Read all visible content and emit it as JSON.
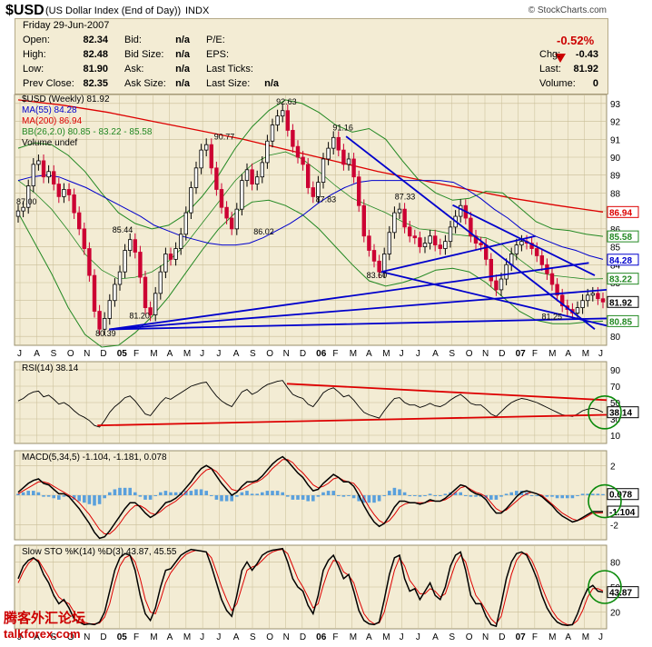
{
  "header": {
    "symbol": "$USD",
    "name": "(US Dollar Index (End of Day))",
    "exchange": "INDX",
    "copyright": "© StockCharts.com"
  },
  "quote": {
    "date": "Friday  29-Jun-2007",
    "open_label": "Open:",
    "open": "82.34",
    "high_label": "High:",
    "high": "82.48",
    "low_label": "Low:",
    "low": "81.90",
    "prev_close_label": "Prev Close:",
    "prev_close": "82.35",
    "bid_label": "Bid:",
    "bid": "n/a",
    "bid_size_label": "Bid Size:",
    "bid_size": "n/a",
    "ask_label": "Ask:",
    "ask": "n/a",
    "ask_size_label": "Ask Size:",
    "ask_size": "n/a",
    "pe_label": "P/E:",
    "eps_label": "EPS:",
    "last_ticks_label": "Last Ticks:",
    "last_size_label": "Last Size:",
    "last_size": "n/a",
    "change_pct": "-0.52%",
    "chg_label": "Chg:",
    "chg": "-0.43",
    "last_label": "Last:",
    "last": "81.92",
    "volume_label": "Volume:",
    "volume": "0",
    "down_color": "#cc0000"
  },
  "chart_data": [
    {
      "type": "candlestick",
      "legend": [
        {
          "text": "$USD (Weekly) 81.92",
          "color": "#000000"
        },
        {
          "text": "MA(55) 84.28",
          "color": "#0000cc"
        },
        {
          "text": "MA(200) 86.94",
          "color": "#dd0000"
        },
        {
          "text": "BB(26,2.0) 80.85 - 83.22 - 85.58",
          "color": "#228822"
        },
        {
          "text": "Volume undef",
          "color": "#000000"
        }
      ],
      "y_ticks": [
        80,
        81,
        82,
        83,
        84,
        85,
        86,
        87,
        88,
        89,
        90,
        91,
        92,
        93
      ],
      "ylim": [
        79.5,
        93.5
      ],
      "x_labels": [
        "J",
        "A",
        "S",
        "O",
        "N",
        "D",
        "05",
        "F",
        "M",
        "A",
        "M",
        "J",
        "J",
        "A",
        "S",
        "O",
        "N",
        "D",
        "06",
        "F",
        "M",
        "A",
        "M",
        "J",
        "J",
        "A",
        "S",
        "O",
        "N",
        "D",
        "07",
        "F",
        "M",
        "A",
        "M",
        "J"
      ],
      "annotations": [
        "87.00",
        "85.44",
        "80.39",
        "81.20",
        "90.77",
        "86.02",
        "92.63",
        "87.83",
        "91.16",
        "87.33",
        "83.60",
        "81.25"
      ],
      "price_tags": [
        {
          "value": 86.94,
          "label": "86.94",
          "color": "#dd0000"
        },
        {
          "value": 85.58,
          "label": "85.58",
          "color": "#228822"
        },
        {
          "value": 84.28,
          "label": "84.28",
          "color": "#0000cc"
        },
        {
          "value": 83.22,
          "label": "83.22",
          "color": "#228822"
        },
        {
          "value": 81.92,
          "label": "81.92",
          "color": "#000000"
        },
        {
          "value": 80.85,
          "label": "80.85",
          "color": "#228822"
        }
      ],
      "close": [
        87.0,
        87.2,
        88.4,
        89.6,
        89.8,
        88.9,
        89.2,
        88.5,
        87.8,
        88.2,
        87.9,
        86.9,
        86.0,
        84.9,
        83.4,
        81.4,
        80.4,
        81.0,
        82.0,
        82.9,
        83.6,
        84.8,
        85.4,
        84.7,
        83.3,
        81.6,
        81.2,
        82.4,
        83.6,
        84.6,
        84.3,
        84.9,
        85.7,
        86.9,
        88.3,
        89.4,
        90.4,
        90.7,
        89.4,
        88.2,
        87.2,
        86.6,
        86.0,
        87.1,
        88.7,
        89.3,
        88.5,
        88.9,
        89.7,
        90.9,
        91.8,
        92.3,
        92.6,
        91.5,
        90.6,
        90.0,
        89.6,
        88.3,
        87.8,
        88.6,
        89.9,
        90.5,
        91.1,
        90.4,
        89.6,
        89.9,
        88.9,
        87.3,
        85.6,
        84.8,
        84.2,
        83.6,
        84.6,
        85.8,
        86.9,
        87.1,
        86.1,
        85.6,
        85.5,
        85.0,
        85.2,
        85.6,
        85.1,
        84.9,
        85.3,
        86.1,
        86.7,
        87.3,
        86.6,
        85.6,
        85.2,
        85.1,
        84.3,
        83.1,
        82.6,
        83.2,
        84.0,
        84.6,
        85.1,
        85.3,
        85.2,
        84.9,
        84.5,
        84.0,
        83.5,
        82.9,
        82.3,
        81.7,
        81.5,
        81.3,
        81.6,
        82.0,
        82.3,
        82.4,
        82.1,
        81.92
      ],
      "ma55": [
        88.7,
        88.9,
        89.0,
        88.9,
        88.6,
        88.3,
        87.9,
        87.5,
        87.1,
        86.7,
        86.2,
        85.9,
        85.6,
        85.4,
        85.2,
        85.1,
        85.1,
        85.2,
        85.5,
        85.9,
        86.3,
        86.8,
        87.4,
        87.9,
        88.3,
        88.6,
        88.7,
        88.7,
        88.7,
        88.7,
        88.7,
        88.7,
        88.6,
        88.2,
        87.7,
        87.1,
        86.6,
        86.0,
        85.6,
        85.3,
        85.0,
        84.8,
        84.5,
        84.3
      ],
      "ma200": [
        93.2,
        92.9,
        92.5,
        92.0,
        91.5,
        91.0,
        90.4,
        89.8,
        89.2,
        88.7,
        88.2,
        87.7,
        87.3,
        86.94
      ],
      "bb_upper": [
        90.5,
        90.8,
        90.7,
        90.1,
        89.2,
        88.0,
        86.9,
        86.3,
        86.0,
        86.2,
        86.8,
        87.8,
        89.0,
        90.5,
        91.7,
        92.6,
        93.2,
        93.0,
        92.5,
        91.8,
        91.4,
        91.6,
        91.0,
        89.8,
        88.7,
        88.0,
        87.6,
        87.7,
        88.1,
        88.0,
        87.2,
        86.4,
        86.0,
        85.9,
        85.7,
        85.58
      ],
      "bb_lower": [
        86.9,
        85.2,
        83.5,
        81.6,
        80.1,
        79.4,
        79.5,
        80.2,
        81.1,
        82.2,
        83.5,
        84.8,
        86.0,
        86.9,
        87.5,
        87.6,
        87.3,
        86.8,
        86.0,
        85.0,
        84.0,
        83.1,
        82.8,
        83.0,
        83.3,
        83.7,
        83.8,
        83.6,
        83.0,
        82.2,
        81.4,
        80.9,
        80.7,
        80.7,
        80.8,
        80.85
      ],
      "bb_mid": [
        88.7,
        88.0,
        87.1,
        85.9,
        84.6,
        83.7,
        83.2,
        83.3,
        83.6,
        84.2,
        85.1,
        86.3,
        87.5,
        88.7,
        89.6,
        90.1,
        90.3,
        89.9,
        89.2,
        88.4,
        87.7,
        87.3,
        86.9,
        86.4,
        86.0,
        85.9,
        85.7,
        85.6,
        85.5,
        85.1,
        84.3,
        83.6,
        83.4,
        83.3,
        83.2,
        83.22
      ],
      "trendlines": [
        {
          "x1": 0.0,
          "y1": 80.39,
          "x2": 1.0,
          "y2": 82.6
        },
        {
          "x1": 0.0,
          "y1": 80.39,
          "x2": 1.0,
          "y2": 81.0
        },
        {
          "x1": 0.0,
          "y1": 80.39,
          "x2": 1.0,
          "y2": 84.1
        },
        {
          "x1": 0.0,
          "y1": 91.16,
          "x2": 1.0,
          "y2": 80.4
        },
        {
          "x1": 0.0,
          "y1": 83.6,
          "x2": 1.0,
          "y2": 85.6
        },
        {
          "x1": 0.0,
          "y1": 83.6,
          "x2": 1.0,
          "y2": 80.6
        },
        {
          "x1": 0.0,
          "y1": 87.33,
          "x2": 1.0,
          "y2": 83.4
        }
      ]
    },
    {
      "type": "line",
      "title": "RSI(14) 38.14",
      "ylim": [
        0,
        100
      ],
      "y_ticks": [
        10,
        30,
        50,
        70,
        90
      ],
      "series": [
        {
          "values": [
            52,
            55,
            60,
            63,
            64,
            57,
            59,
            54,
            48,
            50,
            46,
            40,
            35,
            32,
            28,
            22,
            20,
            28,
            38,
            45,
            50,
            56,
            58,
            52,
            44,
            36,
            34,
            42,
            50,
            56,
            54,
            58,
            62,
            66,
            70,
            72,
            74,
            75,
            66,
            58,
            52,
            48,
            45,
            54,
            63,
            66,
            60,
            63,
            68,
            72,
            74,
            76,
            77,
            68,
            60,
            57,
            55,
            48,
            45,
            53,
            62,
            66,
            68,
            63,
            57,
            59,
            53,
            45,
            38,
            35,
            33,
            31,
            40,
            48,
            55,
            56,
            50,
            47,
            47,
            44,
            46,
            49,
            46,
            45,
            48,
            53,
            57,
            60,
            55,
            49,
            47,
            47,
            42,
            36,
            33,
            39,
            45,
            50,
            53,
            55,
            54,
            52,
            50,
            47,
            44,
            41,
            38,
            35,
            34,
            33,
            36,
            40,
            42,
            43,
            41,
            38.14
          ]
        }
      ],
      "price_tags": [
        {
          "value": 38.14,
          "label": "38.14"
        }
      ]
    },
    {
      "type": "line",
      "title": "MACD(5,34,5) -1.104, -1.181, 0.078",
      "ylim": [
        -3,
        3
      ],
      "y_ticks": [
        -2,
        0,
        2
      ],
      "series": [
        {
          "values": [
            0.2,
            0.5,
            0.8,
            1.0,
            1.1,
            0.8,
            0.7,
            0.4,
            0.1,
            0.1,
            -0.1,
            -0.5,
            -0.9,
            -1.4,
            -1.9,
            -2.5,
            -2.9,
            -2.8,
            -2.4,
            -1.9,
            -1.4,
            -0.9,
            -0.5,
            -0.5,
            -0.8,
            -1.2,
            -1.5,
            -1.3,
            -0.9,
            -0.5,
            -0.4,
            -0.2,
            0.1,
            0.5,
            0.9,
            1.4,
            1.8,
            2.0,
            1.8,
            1.3,
            0.8,
            0.4,
            0.0,
            0.2,
            0.6,
            0.9,
            0.9,
            1.0,
            1.3,
            1.7,
            2.1,
            2.4,
            2.6,
            2.3,
            1.9,
            1.5,
            1.2,
            0.7,
            0.3,
            0.4,
            0.8,
            1.1,
            1.4,
            1.2,
            0.9,
            0.9,
            0.6,
            0.0,
            -0.7,
            -1.3,
            -1.8,
            -2.1,
            -1.9,
            -1.4,
            -0.8,
            -0.4,
            -0.4,
            -0.5,
            -0.5,
            -0.6,
            -0.5,
            -0.3,
            -0.4,
            -0.4,
            -0.2,
            0.1,
            0.4,
            0.7,
            0.6,
            0.3,
            0.1,
            0.0,
            -0.3,
            -0.8,
            -1.2,
            -1.2,
            -0.9,
            -0.5,
            -0.1,
            0.2,
            0.3,
            0.2,
            0.1,
            -0.1,
            -0.4,
            -0.7,
            -1.1,
            -1.4,
            -1.6,
            -1.8,
            -1.7,
            -1.5,
            -1.3,
            -1.1,
            -1.1,
            -1.104
          ],
          "color": "#000000"
        },
        {
          "values": [
            0.1,
            0.3,
            0.5,
            0.7,
            0.9,
            0.9,
            0.8,
            0.6,
            0.4,
            0.2,
            0.0,
            -0.2,
            -0.5,
            -0.9,
            -1.3,
            -1.8,
            -2.3,
            -2.6,
            -2.6,
            -2.3,
            -1.9,
            -1.4,
            -1.0,
            -0.7,
            -0.7,
            -0.9,
            -1.2,
            -1.3,
            -1.1,
            -0.8,
            -0.6,
            -0.4,
            -0.1,
            0.2,
            0.6,
            1.0,
            1.4,
            1.7,
            1.8,
            1.6,
            1.2,
            0.8,
            0.4,
            0.3,
            0.4,
            0.6,
            0.8,
            0.9,
            1.1,
            1.4,
            1.8,
            2.1,
            2.4,
            2.4,
            2.2,
            1.8,
            1.5,
            1.1,
            0.7,
            0.5,
            0.6,
            0.8,
            1.1,
            1.2,
            1.0,
            0.9,
            0.8,
            0.4,
            -0.2,
            -0.8,
            -1.3,
            -1.7,
            -1.9,
            -1.7,
            -1.3,
            -0.8,
            -0.6,
            -0.5,
            -0.5,
            -0.5,
            -0.5,
            -0.4,
            -0.4,
            -0.4,
            -0.3,
            -0.1,
            0.2,
            0.5,
            0.6,
            0.4,
            0.2,
            0.1,
            -0.1,
            -0.5,
            -0.9,
            -1.1,
            -1.0,
            -0.7,
            -0.4,
            -0.1,
            0.1,
            0.2,
            0.1,
            0.0,
            -0.3,
            -0.6,
            -0.9,
            -1.2,
            -1.4,
            -1.6,
            -1.7,
            -1.6,
            -1.4,
            -1.2,
            -1.2,
            -1.181
          ],
          "color": "#dd0000"
        }
      ],
      "price_tags": [
        {
          "value": 0.078,
          "label": "0.078"
        },
        {
          "value": -1.104,
          "label": "-1.104"
        }
      ]
    },
    {
      "type": "line",
      "title": "Slow STO %K(14) %D(3) 43.87, 45.55",
      "ylim": [
        0,
        100
      ],
      "y_ticks": [
        20,
        50,
        80
      ],
      "series": [
        {
          "values": [
            60,
            75,
            82,
            85,
            80,
            65,
            55,
            40,
            30,
            35,
            25,
            12,
            8,
            5,
            6,
            5,
            8,
            20,
            45,
            70,
            85,
            90,
            88,
            70,
            40,
            18,
            10,
            25,
            50,
            70,
            72,
            80,
            88,
            92,
            95,
            94,
            93,
            92,
            75,
            55,
            35,
            22,
            15,
            40,
            70,
            80,
            70,
            78,
            88,
            92,
            94,
            95,
            96,
            80,
            60,
            50,
            45,
            28,
            18,
            40,
            70,
            82,
            88,
            75,
            60,
            65,
            45,
            22,
            10,
            6,
            5,
            8,
            35,
            65,
            85,
            88,
            60,
            45,
            48,
            35,
            45,
            55,
            40,
            35,
            50,
            75,
            88,
            92,
            70,
            40,
            30,
            30,
            15,
            5,
            3,
            30,
            60,
            80,
            90,
            92,
            88,
            75,
            60,
            40,
            25,
            15,
            8,
            5,
            4,
            5,
            18,
            35,
            48,
            52,
            45,
            43.87
          ],
          "color": "#000000"
        },
        {
          "values": [
            55,
            68,
            78,
            84,
            82,
            72,
            62,
            48,
            38,
            33,
            30,
            20,
            12,
            8,
            6,
            6,
            7,
            14,
            30,
            55,
            75,
            85,
            88,
            80,
            60,
            35,
            20,
            18,
            35,
            55,
            67,
            75,
            83,
            89,
            92,
            94,
            93,
            92,
            85,
            68,
            50,
            35,
            22,
            30,
            50,
            70,
            74,
            76,
            82,
            88,
            92,
            94,
            95,
            90,
            75,
            60,
            50,
            38,
            25,
            30,
            52,
            70,
            82,
            80,
            68,
            64,
            55,
            35,
            18,
            10,
            6,
            7,
            20,
            45,
            70,
            85,
            75,
            58,
            50,
            42,
            42,
            48,
            45,
            38,
            42,
            60,
            78,
            88,
            80,
            58,
            40,
            32,
            22,
            12,
            6,
            15,
            40,
            65,
            82,
            90,
            90,
            82,
            68,
            50,
            35,
            22,
            13,
            8,
            5,
            5,
            10,
            22,
            38,
            48,
            48,
            45.55
          ],
          "color": "#dd0000"
        }
      ],
      "price_tags": [
        {
          "value": 43.87,
          "label": "43.87"
        }
      ]
    }
  ],
  "legend_text": {
    "rsi": "RSI(14) 38.14",
    "macd": "MACD(5,34,5) -1.104, -1.181, 0.078",
    "sto": "Slow STO %K(14) %D(3) 43.87, 45.55"
  },
  "watermark": {
    "cn": "腾客外汇论坛",
    "en": "talkforex.com"
  },
  "colors": {
    "panel_bg": "#f3ecd4",
    "grid": "#c8bd96",
    "bar_down": "#cc0033",
    "bar_up": "#000000",
    "trend": "#0000cc",
    "circle": "#0a8a0a"
  }
}
